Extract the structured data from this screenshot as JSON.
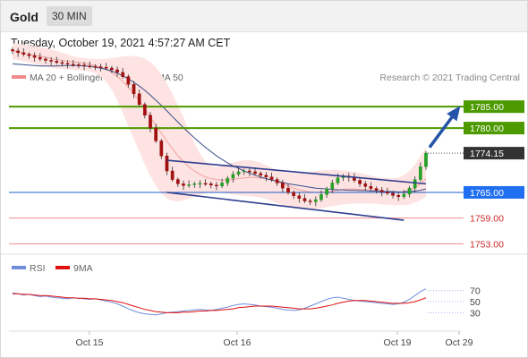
{
  "header": {
    "symbol": "Gold",
    "timeframe": "30 MIN"
  },
  "datetime": "Tuesday, October 19, 2021 4:57:27 AM CET",
  "legend": {
    "bb_label": "MA 20 + Bollinger Bands",
    "ma50_label": "MA 50",
    "copyright": "Research © 2021 Trading Central",
    "rsi_label": "RSI",
    "rsi_ma_label": "9MA"
  },
  "colors": {
    "resistance": "#4d9a00",
    "support": "#1f5fc8",
    "lower_support": "#f08c8c",
    "price_label": "#333333",
    "candle_up": "#27a127",
    "candle_down": "#a01010",
    "ma20": "#f4a0a0",
    "ma50": "#3a4f8c",
    "bollinger_fill": "#fde3e1",
    "channel": "#2e3d8f",
    "rsi": "#6f8ddb",
    "rsi_ma": "#e01010"
  },
  "chart_data": [
    {
      "type": "candlestick",
      "x_ticks": [
        "Oct 15",
        "Oct 16",
        "Oct 19",
        "Oct 29"
      ],
      "y_range": [
        1751,
        1789
      ],
      "levels": [
        {
          "value": 1785.0,
          "label": "1785.00",
          "kind": "resistance"
        },
        {
          "value": 1780.0,
          "label": "1780.00",
          "kind": "resistance"
        },
        {
          "value": 1774.15,
          "label": "1774.15",
          "kind": "last_price"
        },
        {
          "value": 1765.0,
          "label": "1765.00",
          "kind": "support"
        },
        {
          "value": 1759.0,
          "label": "1759.00",
          "kind": "lower_support"
        },
        {
          "value": 1753.0,
          "label": "1753.00",
          "kind": "lower_support"
        }
      ],
      "close": [
        1798.0,
        1797.6,
        1797.2,
        1796.9,
        1796.5,
        1796.1,
        1795.8,
        1795.6,
        1795.3,
        1795.1,
        1794.9,
        1794.8,
        1794.7,
        1794.5,
        1794.4,
        1794.3,
        1794.2,
        1794.0,
        1793.6,
        1793.0,
        1792.0,
        1790.2,
        1788.0,
        1785.5,
        1783.0,
        1780.0,
        1777.0,
        1773.5,
        1770.0,
        1768.0,
        1767.0,
        1766.6,
        1766.8,
        1767.0,
        1767.1,
        1767.0,
        1766.7,
        1766.5,
        1767.2,
        1768.3,
        1769.2,
        1769.8,
        1770.0,
        1769.8,
        1769.4,
        1769.0,
        1768.6,
        1768.0,
        1767.2,
        1766.0,
        1765.0,
        1764.2,
        1763.6,
        1763.0,
        1762.8,
        1763.3,
        1764.5,
        1765.8,
        1767.2,
        1768.4,
        1768.8,
        1768.5,
        1767.8,
        1767.0,
        1766.4,
        1765.9,
        1765.5,
        1765.1,
        1764.8,
        1764.3,
        1764.0,
        1764.6,
        1766.0,
        1768.0,
        1771.0,
        1774.15
      ],
      "ma20": [
        1798.0,
        1797.8,
        1797.5,
        1797.2,
        1797.0,
        1796.8,
        1796.5,
        1796.2,
        1796.0,
        1795.8,
        1795.6,
        1795.4,
        1795.3,
        1795.1,
        1794.9,
        1794.6,
        1794.2,
        1793.7,
        1793.0,
        1792.0,
        1790.9,
        1789.5,
        1788.0,
        1786.3,
        1784.5,
        1782.6,
        1780.7,
        1778.8,
        1776.9,
        1775.2,
        1773.6,
        1772.2,
        1771.0,
        1770.0,
        1769.2,
        1768.6,
        1768.2,
        1768.0,
        1767.9,
        1767.9,
        1768.0,
        1768.2,
        1768.4,
        1768.5,
        1768.5,
        1768.4,
        1768.2,
        1767.9,
        1767.5,
        1767.0,
        1766.5,
        1766.0,
        1765.6,
        1765.3,
        1765.1,
        1765.0,
        1765.0,
        1765.1,
        1765.3,
        1765.5,
        1765.7,
        1765.8,
        1765.8,
        1765.7,
        1765.6,
        1765.5,
        1765.4,
        1765.3,
        1765.2,
        1765.1,
        1765.1,
        1765.2,
        1765.5,
        1766.1,
        1767.0,
        1768.2
      ],
      "bb_upper": [
        1799.8,
        1799.7,
        1799.5,
        1799.3,
        1799.1,
        1798.9,
        1798.6,
        1798.3,
        1798.0,
        1797.6,
        1797.2,
        1796.8,
        1796.5,
        1796.3,
        1796.2,
        1796.1,
        1796.1,
        1796.2,
        1796.3,
        1796.5,
        1796.7,
        1796.8,
        1796.8,
        1796.6,
        1796.2,
        1795.4,
        1794.2,
        1792.5,
        1790.4,
        1788.0,
        1785.3,
        1782.5,
        1779.5,
        1776.5,
        1774.0,
        1772.2,
        1771.2,
        1771.0,
        1771.2,
        1771.6,
        1772.0,
        1772.3,
        1772.5,
        1772.5,
        1772.3,
        1771.9,
        1771.3,
        1770.8,
        1770.2,
        1769.8,
        1769.6,
        1769.5,
        1769.5,
        1769.6,
        1769.8,
        1770.0,
        1770.1,
        1770.2,
        1770.2,
        1770.2,
        1770.1,
        1770.0,
        1769.8,
        1769.5,
        1769.2,
        1768.9,
        1768.6,
        1768.4,
        1768.3,
        1768.3,
        1768.5,
        1769.0,
        1770.0,
        1771.5,
        1773.5,
        1775.5
      ],
      "bb_lower": [
        1796.0,
        1795.9,
        1795.6,
        1795.3,
        1795.0,
        1794.7,
        1794.4,
        1794.1,
        1793.9,
        1793.8,
        1793.7,
        1793.6,
        1793.5,
        1793.4,
        1793.2,
        1792.8,
        1792.0,
        1790.8,
        1789.0,
        1786.5,
        1783.5,
        1780.5,
        1777.5,
        1774.5,
        1771.5,
        1768.8,
        1766.5,
        1764.8,
        1763.6,
        1763.0,
        1762.9,
        1763.1,
        1763.5,
        1764.0,
        1764.4,
        1764.8,
        1765.0,
        1765.0,
        1764.9,
        1764.7,
        1764.5,
        1764.3,
        1764.2,
        1764.1,
        1764.0,
        1763.8,
        1763.5,
        1763.0,
        1762.5,
        1762.0,
        1761.6,
        1761.3,
        1761.1,
        1761.0,
        1761.0,
        1761.1,
        1761.3,
        1761.5,
        1761.8,
        1762.0,
        1762.2,
        1762.3,
        1762.4,
        1762.4,
        1762.4,
        1762.4,
        1762.3,
        1762.2,
        1762.1,
        1762.0,
        1762.0,
        1762.0,
        1762.2,
        1762.6,
        1763.2,
        1764.0
      ],
      "ma50": [
        1795.0,
        1794.9,
        1794.8,
        1794.7,
        1794.6,
        1794.5,
        1794.5,
        1794.5,
        1794.5,
        1794.6,
        1794.6,
        1794.6,
        1794.6,
        1794.5,
        1794.4,
        1794.2,
        1794.0,
        1793.7,
        1793.3,
        1792.8,
        1792.2,
        1791.5,
        1790.7,
        1789.8,
        1788.8,
        1787.7,
        1786.5,
        1785.3,
        1784.0,
        1782.7,
        1781.4,
        1780.1,
        1778.9,
        1777.7,
        1776.6,
        1775.5,
        1774.5,
        1773.5,
        1772.7,
        1771.9,
        1771.2,
        1770.6,
        1770.0,
        1769.5,
        1769.0,
        1768.6,
        1768.2,
        1767.9,
        1767.6,
        1767.3,
        1767.0,
        1766.8,
        1766.6,
        1766.4,
        1766.2,
        1766.0,
        1765.9,
        1765.8,
        1765.7,
        1765.6,
        1765.6,
        1765.5,
        1765.5,
        1765.4,
        1765.4,
        1765.3,
        1765.3,
        1765.2,
        1765.2,
        1765.2,
        1765.1,
        1765.1,
        1765.2,
        1765.3,
        1765.5,
        1765.8
      ]
    },
    {
      "type": "line",
      "y_ticks": [
        "70",
        "50",
        "30"
      ],
      "y_range": [
        0,
        100
      ],
      "rsi": [
        66,
        64,
        62,
        63,
        61,
        59,
        60,
        58,
        57,
        56,
        55,
        57,
        56,
        55,
        54,
        55,
        53,
        51,
        49,
        46,
        42,
        37,
        33,
        30,
        28,
        27,
        26,
        28,
        30,
        31,
        32,
        33,
        34,
        35,
        36,
        35,
        34,
        36,
        38,
        40,
        43,
        45,
        46,
        45,
        44,
        42,
        41,
        40,
        38,
        36,
        35,
        34,
        35,
        38,
        42,
        46,
        50,
        54,
        57,
        58,
        56,
        54,
        52,
        51,
        50,
        49,
        48,
        47,
        46,
        45,
        46,
        49,
        54,
        61,
        68,
        73
      ],
      "rsi_ma": [
        64,
        64,
        63,
        63,
        62,
        61,
        61,
        60,
        59,
        58,
        57,
        57,
        56,
        56,
        55,
        55,
        54,
        53,
        52,
        50,
        48,
        45,
        42,
        39,
        36,
        34,
        32,
        31,
        30,
        30,
        30,
        31,
        31,
        32,
        33,
        33,
        34,
        34,
        35,
        36,
        37,
        39,
        40,
        41,
        42,
        42,
        42,
        42,
        41,
        40,
        39,
        38,
        37,
        37,
        37,
        38,
        40,
        42,
        44,
        47,
        49,
        51,
        52,
        52,
        52,
        51,
        50,
        49,
        48,
        47,
        47,
        47,
        48,
        50,
        53,
        57
      ]
    }
  ]
}
